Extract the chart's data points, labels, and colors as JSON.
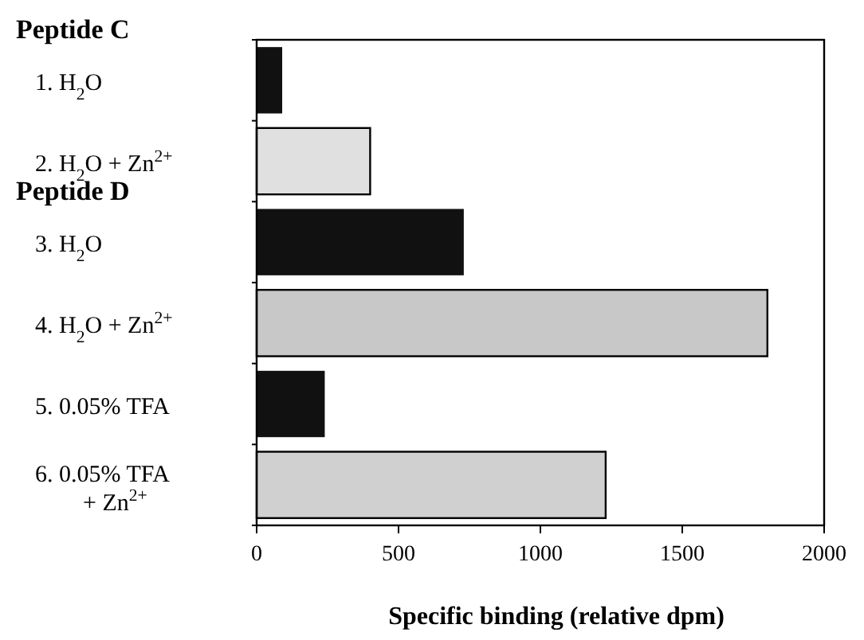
{
  "chart_data": {
    "type": "bar",
    "orientation": "horizontal",
    "xlabel": "Specific binding (relative dpm)",
    "categories": [
      "1. H$_{2}$O",
      "2. H$_{2}$O + Zn$^{2+}$",
      "3. H$_{2}$O",
      "4. H$_{2}$O + Zn$^{2+}$",
      "5. 0.05% TFA",
      "6. 0.05% TFA\n+ Zn$^{2+}$"
    ],
    "values": [
      90,
      400,
      730,
      1800,
      240,
      1230
    ],
    "colors": [
      "#111111",
      "#e0e0e0",
      "#111111",
      "#c8c8c8",
      "#111111",
      "#d0d0d0"
    ],
    "xlim": [
      0,
      2000
    ],
    "xticks": [
      0,
      500,
      1000,
      1500,
      2000
    ],
    "annotations": [
      "Peptide C",
      "Peptide D"
    ]
  }
}
